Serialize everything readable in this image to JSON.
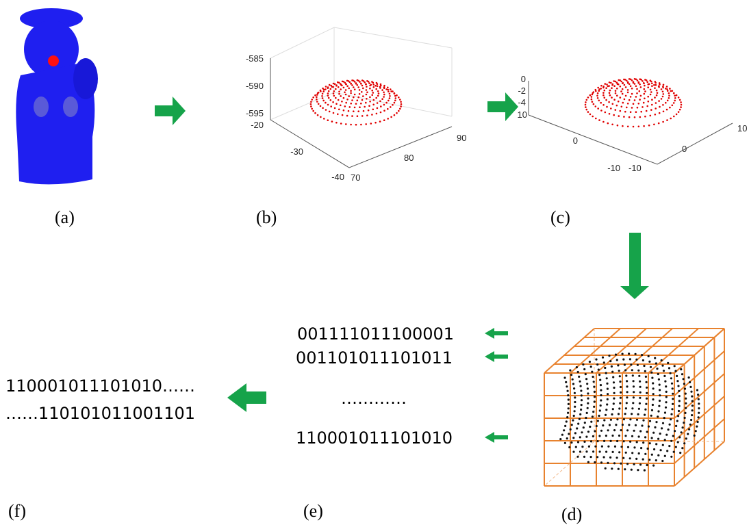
{
  "panels": {
    "a": "(a)",
    "b": "(b)",
    "c": "(c)",
    "d": "(d)",
    "e": "(e)",
    "f": "(f)"
  },
  "plot_b": {
    "z_ticks": [
      "-585",
      "-590",
      "-595"
    ],
    "y_ticks": [
      "-20",
      "-30",
      "-40"
    ],
    "x_ticks": [
      "70",
      "80",
      "90"
    ]
  },
  "plot_c": {
    "z_ticks": [
      "0",
      "-2",
      "-4"
    ],
    "y_ticks": [
      "10",
      "0",
      "-10"
    ],
    "x_ticks": [
      "-10",
      "0",
      "10"
    ]
  },
  "codes": [
    "001111011100001",
    "001101011101011",
    "…………",
    "110001011101010"
  ],
  "result": [
    "110001011101010……",
    "……110101011001101"
  ]
}
